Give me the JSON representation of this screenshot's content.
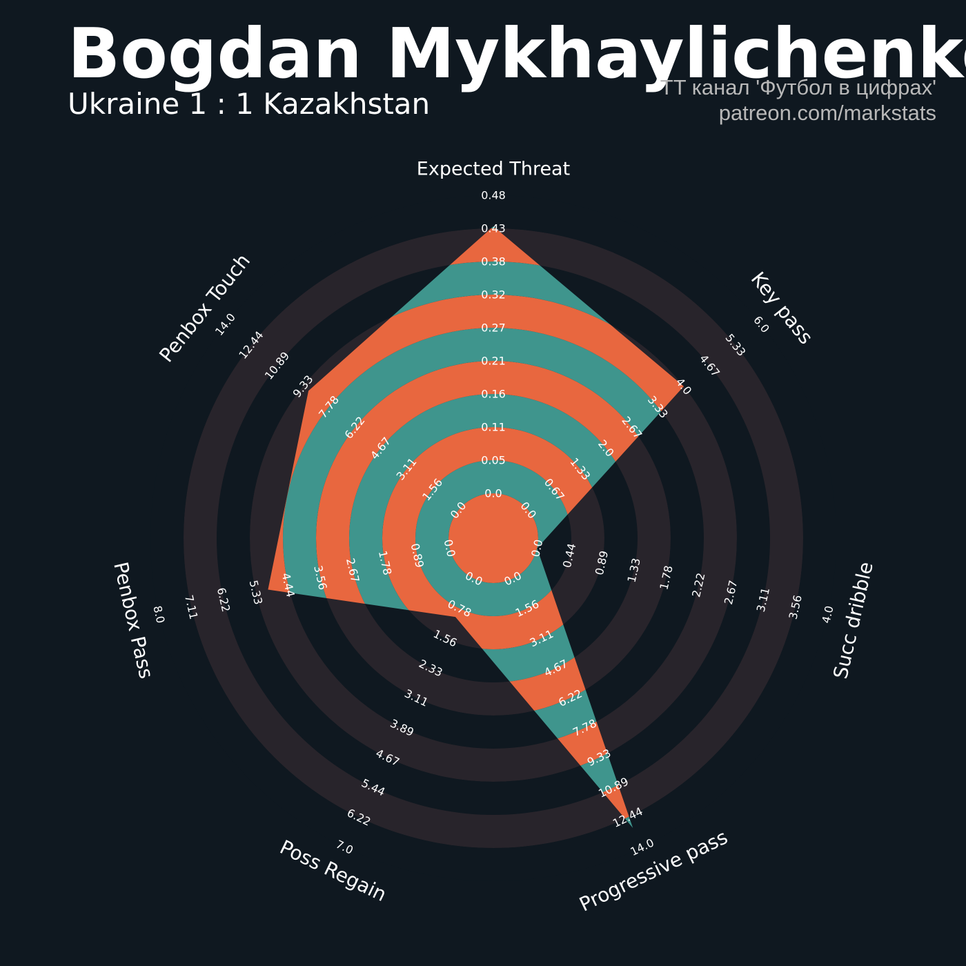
{
  "header": {
    "title": "Bogdan Mykhaylichenko",
    "subtitle": "Ukraine 1 : 1 Kazakhstan",
    "credit_line1": "TT канал 'Футбол в цифрах'",
    "credit_line2": "patreon.com/markstats"
  },
  "chart_data": {
    "type": "radar",
    "title": "Bogdan Mykhaylichenko",
    "subtitle": "Ukraine 1 : 1 Kazakhstan",
    "params": [
      {
        "name": "Expected Threat",
        "value": 0.43,
        "min": 0,
        "max": 0.48,
        "ticks": [
          "0.0",
          "0.05",
          "0.11",
          "0.16",
          "0.21",
          "0.27",
          "0.32",
          "0.38",
          "0.43",
          "0.48"
        ]
      },
      {
        "name": "Key pass",
        "value": 4.0,
        "min": 0,
        "max": 6.0,
        "ticks": [
          "0.0",
          "0.67",
          "1.33",
          "2.0",
          "2.67",
          "3.33",
          "4.0",
          "4.67",
          "5.33",
          "6.0"
        ]
      },
      {
        "name": "Succ dribble",
        "value": 0.0,
        "min": 0,
        "max": 4.0,
        "ticks": [
          "0.0",
          "0.44",
          "0.89",
          "1.33",
          "1.78",
          "2.22",
          "2.67",
          "3.11",
          "3.56",
          "4.0"
        ]
      },
      {
        "name": "Progressive pass",
        "value": 13.0,
        "min": 0,
        "max": 14.0,
        "ticks": [
          "0.0",
          "1.56",
          "3.11",
          "4.67",
          "6.22",
          "7.78",
          "9.33",
          "10.89",
          "12.44",
          "14.0"
        ]
      },
      {
        "name": "Poss Regain",
        "value": 1.0,
        "min": 0,
        "max": 7.0,
        "ticks": [
          "0.0",
          "0.78",
          "1.56",
          "2.33",
          "3.11",
          "3.89",
          "4.67",
          "5.44",
          "6.22",
          "7.0"
        ]
      },
      {
        "name": "Penbox Pass",
        "value": 5.0,
        "min": 0,
        "max": 8.0,
        "ticks": [
          "0.0",
          "0.89",
          "1.78",
          "2.67",
          "3.56",
          "4.44",
          "5.33",
          "6.22",
          "7.11",
          "8.0"
        ]
      },
      {
        "name": "Penbox Touch",
        "value": 9.0,
        "min": 0,
        "max": 14.0,
        "ticks": [
          "0.0",
          "1.56",
          "3.11",
          "4.67",
          "6.22",
          "7.78",
          "9.33",
          "10.89",
          "12.44",
          "14.0"
        ]
      }
    ],
    "colors": {
      "background": "#0f1820",
      "ring_dark": "#28242b",
      "ring_light": "#0f1820",
      "fill_primary": "#e8673f",
      "fill_secondary": "#3f958d",
      "text": "#ffffff"
    }
  }
}
